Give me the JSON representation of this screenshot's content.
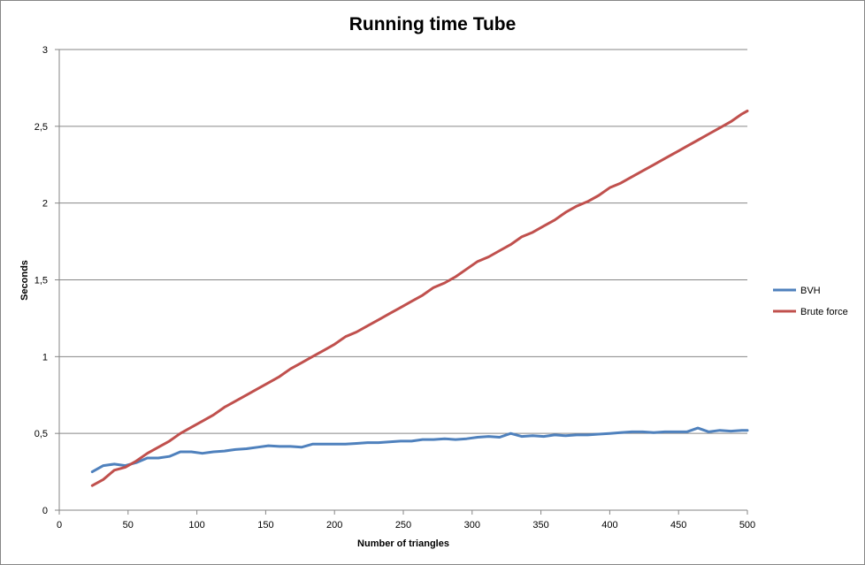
{
  "chart_data": {
    "type": "line",
    "title": "Running time Tube",
    "xlabel": "Number of triangles",
    "ylabel": "Seconds",
    "xlim": [
      0,
      500
    ],
    "ylim": [
      0,
      3
    ],
    "x_ticks": [
      0,
      50,
      100,
      150,
      200,
      250,
      300,
      350,
      400,
      450,
      500
    ],
    "x_tick_labels": [
      "0",
      "50",
      "100",
      "150",
      "200",
      "250",
      "300",
      "350",
      "400",
      "450",
      "500"
    ],
    "y_ticks": [
      0,
      0.5,
      1,
      1.5,
      2,
      2.5,
      3
    ],
    "y_tick_labels": [
      "0",
      "0,5",
      "1",
      "1,5",
      "2",
      "2,5",
      "3"
    ],
    "grid": "horizontal",
    "legend_position": "right",
    "x": [
      24,
      32,
      40,
      48,
      56,
      64,
      72,
      80,
      88,
      96,
      104,
      112,
      120,
      128,
      136,
      144,
      152,
      160,
      168,
      176,
      184,
      192,
      200,
      208,
      216,
      224,
      232,
      240,
      248,
      256,
      264,
      272,
      280,
      288,
      296,
      304,
      312,
      320,
      328,
      336,
      344,
      352,
      360,
      368,
      376,
      384,
      392,
      400,
      408,
      416,
      424,
      432,
      440,
      448,
      456,
      464,
      472,
      480,
      488,
      496,
      500
    ],
    "series": [
      {
        "name": "BVH",
        "color": "#4F81BD",
        "values": [
          0.25,
          0.29,
          0.3,
          0.29,
          0.31,
          0.34,
          0.34,
          0.35,
          0.38,
          0.38,
          0.37,
          0.38,
          0.385,
          0.395,
          0.4,
          0.41,
          0.42,
          0.415,
          0.415,
          0.41,
          0.43,
          0.43,
          0.43,
          0.43,
          0.435,
          0.44,
          0.44,
          0.445,
          0.45,
          0.45,
          0.46,
          0.46,
          0.465,
          0.46,
          0.465,
          0.475,
          0.48,
          0.475,
          0.5,
          0.48,
          0.485,
          0.48,
          0.49,
          0.485,
          0.49,
          0.49,
          0.495,
          0.5,
          0.505,
          0.51,
          0.51,
          0.505,
          0.51,
          0.51,
          0.51,
          0.535,
          0.51,
          0.52,
          0.515,
          0.52,
          0.52
        ]
      },
      {
        "name": "Brute force",
        "color": "#C0504D",
        "values": [
          0.16,
          0.2,
          0.26,
          0.28,
          0.32,
          0.37,
          0.41,
          0.45,
          0.5,
          0.54,
          0.58,
          0.62,
          0.67,
          0.71,
          0.75,
          0.79,
          0.83,
          0.87,
          0.92,
          0.96,
          1.0,
          1.04,
          1.08,
          1.13,
          1.16,
          1.2,
          1.24,
          1.28,
          1.32,
          1.36,
          1.4,
          1.45,
          1.48,
          1.52,
          1.57,
          1.62,
          1.65,
          1.69,
          1.73,
          1.78,
          1.81,
          1.85,
          1.89,
          1.94,
          1.98,
          2.01,
          2.05,
          2.1,
          2.13,
          2.17,
          2.21,
          2.25,
          2.29,
          2.33,
          2.37,
          2.41,
          2.45,
          2.49,
          2.53,
          2.58,
          2.6
        ]
      }
    ]
  }
}
